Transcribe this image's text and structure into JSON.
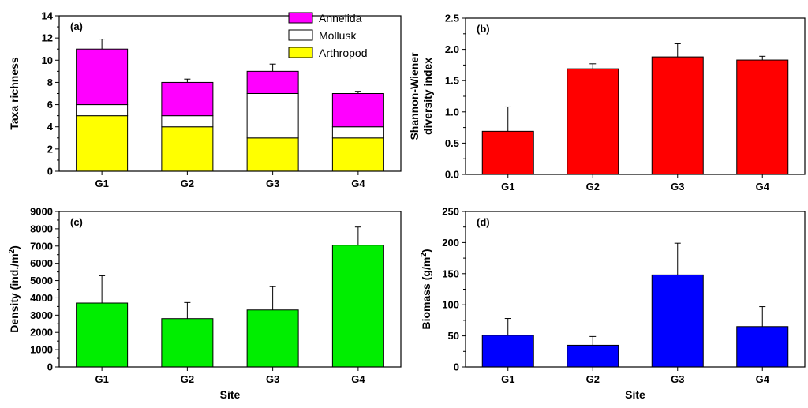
{
  "chart_data": [
    {
      "panel_label": "(a)",
      "type": "bar",
      "stacked": true,
      "categories": [
        "G1",
        "G2",
        "G3",
        "G4"
      ],
      "series": [
        {
          "name": "Arthropod",
          "color": "#ffff00",
          "values": [
            5,
            4,
            3,
            3
          ]
        },
        {
          "name": "Mollusk",
          "color": "#ffffff",
          "values": [
            1,
            1,
            4,
            1
          ]
        },
        {
          "name": "Annelida",
          "color": "#ff00ff",
          "values": [
            5,
            3,
            2,
            3
          ]
        }
      ],
      "error": [
        0.9,
        0.3,
        0.65,
        0.2
      ],
      "ylabel": "Taxa richness",
      "xlabel": "",
      "ylim": [
        0,
        14
      ],
      "yticks": [
        0,
        2,
        4,
        6,
        8,
        10,
        12,
        14
      ],
      "legend": [
        "Annelida",
        "Mollusk",
        "Arthropod"
      ],
      "legend_position": "top-center",
      "grid": false
    },
    {
      "panel_label": "(b)",
      "type": "bar",
      "categories": [
        "G1",
        "G2",
        "G3",
        "G4"
      ],
      "values": [
        0.69,
        1.69,
        1.88,
        1.83
      ],
      "error": [
        0.39,
        0.08,
        0.21,
        0.06
      ],
      "color": "#ff0000",
      "ylabel": [
        "Shannon-Wiener",
        "diversity index"
      ],
      "xlabel": "",
      "ylim": [
        0,
        2.5
      ],
      "yticks": [
        "0.0",
        "0.5",
        "1.0",
        "1.5",
        "2.0",
        "2.5"
      ],
      "grid": false
    },
    {
      "panel_label": "(c)",
      "type": "bar",
      "categories": [
        "G1",
        "G2",
        "G3",
        "G4"
      ],
      "values": [
        3700,
        2800,
        3300,
        7050
      ],
      "error": [
        1580,
        930,
        1350,
        1050
      ],
      "color": "#00ee00",
      "ylabel": "Density (ind./m",
      "ylabel_sup": "2",
      "ylabel_end": ")",
      "xlabel": "Site",
      "ylim": [
        0,
        9000
      ],
      "yticks": [
        0,
        1000,
        2000,
        3000,
        4000,
        5000,
        6000,
        7000,
        8000,
        9000
      ],
      "grid": false
    },
    {
      "panel_label": "(d)",
      "type": "bar",
      "categories": [
        "G1",
        "G2",
        "G3",
        "G4"
      ],
      "values": [
        51,
        35,
        148,
        65
      ],
      "error": [
        27,
        14,
        51,
        32
      ],
      "color": "#0000ff",
      "ylabel": "Biomass (g/m",
      "ylabel_sup": "2",
      "ylabel_end": ")",
      "xlabel": "Site",
      "ylim": [
        0,
        250
      ],
      "yticks": [
        0,
        50,
        100,
        150,
        200,
        250
      ],
      "grid": false
    }
  ]
}
